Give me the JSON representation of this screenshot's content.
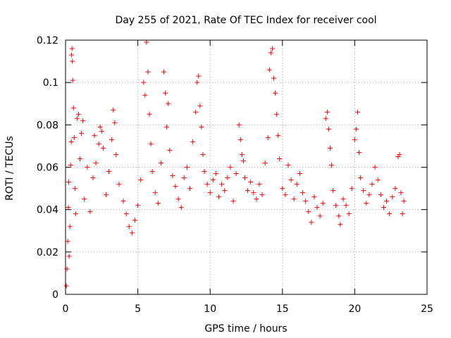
{
  "chart_data": {
    "type": "scatter",
    "title": "Day 255 of 2021, Rate Of TEC Index for receiver cool",
    "xlabel": "GPS time / hours",
    "ylabel": "ROTI / TECUs",
    "xlim": [
      0,
      25
    ],
    "ylim": [
      0,
      0.12
    ],
    "xticks": [
      0,
      5,
      10,
      15,
      20,
      25
    ],
    "xtick_labels": [
      "0",
      "5",
      "10",
      "15",
      "20",
      "25"
    ],
    "yticks": [
      0,
      0.02,
      0.04,
      0.06,
      0.08,
      0.1,
      0.12
    ],
    "ytick_labels": [
      "0",
      "0.02",
      "0.04",
      "0.06",
      "0.08",
      "0.1",
      "0.12"
    ],
    "grid": true,
    "marker": "+",
    "color": "#ff0000",
    "series": [
      {
        "points": [
          [
            0.05,
            0.004
          ],
          [
            0.1,
            0.012
          ],
          [
            0.15,
            0.025
          ],
          [
            0.2,
            0.041
          ],
          [
            0.22,
            0.053
          ],
          [
            0.25,
            0.018
          ],
          [
            0.3,
            0.032
          ],
          [
            0.35,
            0.061
          ],
          [
            0.4,
            0.072
          ],
          [
            0.42,
            0.113
          ],
          [
            0.45,
            0.116
          ],
          [
            0.47,
            0.11
          ],
          [
            0.5,
            0.101
          ],
          [
            0.55,
            0.088
          ],
          [
            0.6,
            0.074
          ],
          [
            0.65,
            0.05
          ],
          [
            0.7,
            0.038
          ],
          [
            0.8,
            0.083
          ],
          [
            0.9,
            0.085
          ],
          [
            1.0,
            0.064
          ],
          [
            1.1,
            0.076
          ],
          [
            1.2,
            0.082
          ],
          [
            1.3,
            0.045
          ],
          [
            1.5,
            0.06
          ],
          [
            1.7,
            0.039
          ],
          [
            1.9,
            0.055
          ],
          [
            2.0,
            0.075
          ],
          [
            2.1,
            0.062
          ],
          [
            2.3,
            0.071
          ],
          [
            2.4,
            0.079
          ],
          [
            2.5,
            0.077
          ],
          [
            2.6,
            0.069
          ],
          [
            2.8,
            0.047
          ],
          [
            3.0,
            0.058
          ],
          [
            3.2,
            0.073
          ],
          [
            3.3,
            0.087
          ],
          [
            3.4,
            0.081
          ],
          [
            3.5,
            0.066
          ],
          [
            3.7,
            0.052
          ],
          [
            4.0,
            0.044
          ],
          [
            4.2,
            0.038
          ],
          [
            4.4,
            0.032
          ],
          [
            4.6,
            0.029
          ],
          [
            4.8,
            0.035
          ],
          [
            5.0,
            0.042
          ],
          [
            5.2,
            0.054
          ],
          [
            5.4,
            0.1
          ],
          [
            5.5,
            0.094
          ],
          [
            5.6,
            0.119
          ],
          [
            5.7,
            0.105
          ],
          [
            5.8,
            0.085
          ],
          [
            5.9,
            0.071
          ],
          [
            6.0,
            0.058
          ],
          [
            6.2,
            0.048
          ],
          [
            6.4,
            0.043
          ],
          [
            6.6,
            0.062
          ],
          [
            6.8,
            0.105
          ],
          [
            6.9,
            0.095
          ],
          [
            7.0,
            0.079
          ],
          [
            7.1,
            0.09
          ],
          [
            7.2,
            0.068
          ],
          [
            7.4,
            0.056
          ],
          [
            7.6,
            0.051
          ],
          [
            7.8,
            0.045
          ],
          [
            8.0,
            0.041
          ],
          [
            8.2,
            0.055
          ],
          [
            8.4,
            0.06
          ],
          [
            8.6,
            0.05
          ],
          [
            8.8,
            0.072
          ],
          [
            9.0,
            0.086
          ],
          [
            9.1,
            0.1
          ],
          [
            9.2,
            0.103
          ],
          [
            9.3,
            0.089
          ],
          [
            9.4,
            0.079
          ],
          [
            9.5,
            0.066
          ],
          [
            9.6,
            0.058
          ],
          [
            9.8,
            0.052
          ],
          [
            10.0,
            0.048
          ],
          [
            10.2,
            0.054
          ],
          [
            10.4,
            0.057
          ],
          [
            10.6,
            0.046
          ],
          [
            10.8,
            0.052
          ],
          [
            11.0,
            0.049
          ],
          [
            11.2,
            0.055
          ],
          [
            11.4,
            0.06
          ],
          [
            11.6,
            0.044
          ],
          [
            11.8,
            0.057
          ],
          [
            12.0,
            0.08
          ],
          [
            12.1,
            0.073
          ],
          [
            12.2,
            0.066
          ],
          [
            12.3,
            0.063
          ],
          [
            12.4,
            0.055
          ],
          [
            12.6,
            0.049
          ],
          [
            12.8,
            0.053
          ],
          [
            13.0,
            0.048
          ],
          [
            13.2,
            0.045
          ],
          [
            13.4,
            0.052
          ],
          [
            13.6,
            0.047
          ],
          [
            13.8,
            0.062
          ],
          [
            14.0,
            0.074
          ],
          [
            14.1,
            0.106
          ],
          [
            14.2,
            0.114
          ],
          [
            14.3,
            0.116
          ],
          [
            14.4,
            0.102
          ],
          [
            14.5,
            0.095
          ],
          [
            14.6,
            0.085
          ],
          [
            14.7,
            0.075
          ],
          [
            14.8,
            0.064
          ],
          [
            15.0,
            0.05
          ],
          [
            15.2,
            0.047
          ],
          [
            15.4,
            0.061
          ],
          [
            15.6,
            0.054
          ],
          [
            15.8,
            0.045
          ],
          [
            16.0,
            0.052
          ],
          [
            16.2,
            0.057
          ],
          [
            16.4,
            0.048
          ],
          [
            16.6,
            0.044
          ],
          [
            16.8,
            0.039
          ],
          [
            17.0,
            0.034
          ],
          [
            17.2,
            0.046
          ],
          [
            17.4,
            0.041
          ],
          [
            17.6,
            0.037
          ],
          [
            17.8,
            0.043
          ],
          [
            18.0,
            0.083
          ],
          [
            18.1,
            0.086
          ],
          [
            18.2,
            0.078
          ],
          [
            18.3,
            0.069
          ],
          [
            18.4,
            0.061
          ],
          [
            18.5,
            0.049
          ],
          [
            18.7,
            0.042
          ],
          [
            18.9,
            0.037
          ],
          [
            19.0,
            0.033
          ],
          [
            19.2,
            0.045
          ],
          [
            19.4,
            0.042
          ],
          [
            19.6,
            0.038
          ],
          [
            19.8,
            0.05
          ],
          [
            20.0,
            0.073
          ],
          [
            20.1,
            0.078
          ],
          [
            20.2,
            0.086
          ],
          [
            20.3,
            0.067
          ],
          [
            20.4,
            0.055
          ],
          [
            20.6,
            0.049
          ],
          [
            20.8,
            0.043
          ],
          [
            21.0,
            0.047
          ],
          [
            21.2,
            0.052
          ],
          [
            21.4,
            0.06
          ],
          [
            21.6,
            0.054
          ],
          [
            21.8,
            0.047
          ],
          [
            22.0,
            0.041
          ],
          [
            22.2,
            0.044
          ],
          [
            22.4,
            0.038
          ],
          [
            22.6,
            0.046
          ],
          [
            22.8,
            0.05
          ],
          [
            23.0,
            0.065
          ],
          [
            23.1,
            0.066
          ],
          [
            23.2,
            0.048
          ],
          [
            23.3,
            0.038
          ],
          [
            23.4,
            0.044
          ]
        ]
      }
    ]
  }
}
